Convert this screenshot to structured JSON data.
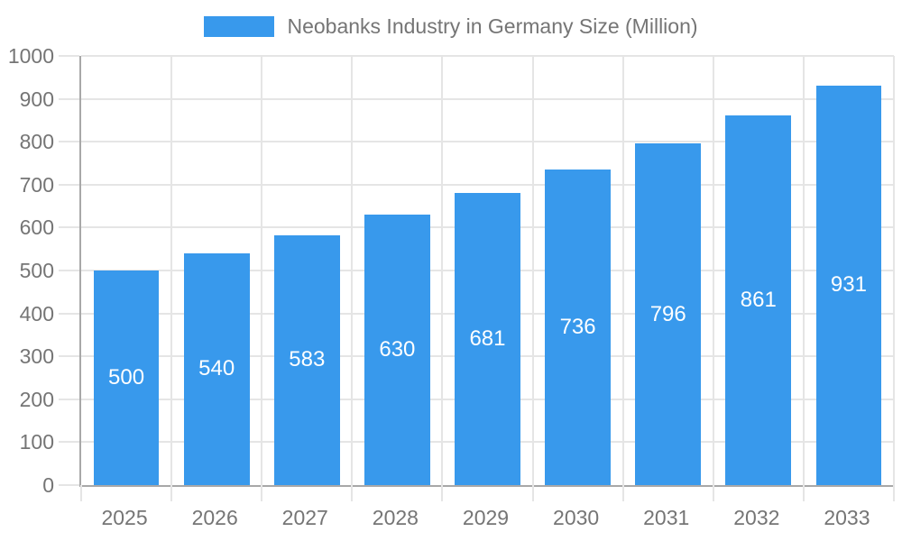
{
  "legend": {
    "label": "Neobanks Industry in Germany Size (Million)"
  },
  "chart_data": {
    "type": "bar",
    "title": "Neobanks Industry in Germany Size (Million)",
    "categories": [
      "2025",
      "2026",
      "2027",
      "2028",
      "2029",
      "2030",
      "2031",
      "2032",
      "2033"
    ],
    "values": [
      500,
      540,
      583,
      630,
      681,
      736,
      796,
      861,
      931
    ],
    "value_labels": [
      "500",
      "540",
      "583",
      "630",
      "681",
      "736",
      "796",
      "861",
      "931"
    ],
    "xlabel": "",
    "ylabel": "",
    "ylim": [
      0,
      1000
    ],
    "ytick_step": 100,
    "ytick_labels": [
      "0",
      "100",
      "200",
      "300",
      "400",
      "500",
      "600",
      "700",
      "800",
      "900",
      "1000"
    ],
    "grid": true,
    "legend_position": "top-center",
    "value_label_position": "inside-center",
    "colors": {
      "bar": "#3899EC",
      "value_text": "#FFFFFF",
      "axis_text": "#757575",
      "gridline": "#E5E5E5",
      "axis_line": "#A8A8A8",
      "background": "#FFFFFF"
    }
  }
}
